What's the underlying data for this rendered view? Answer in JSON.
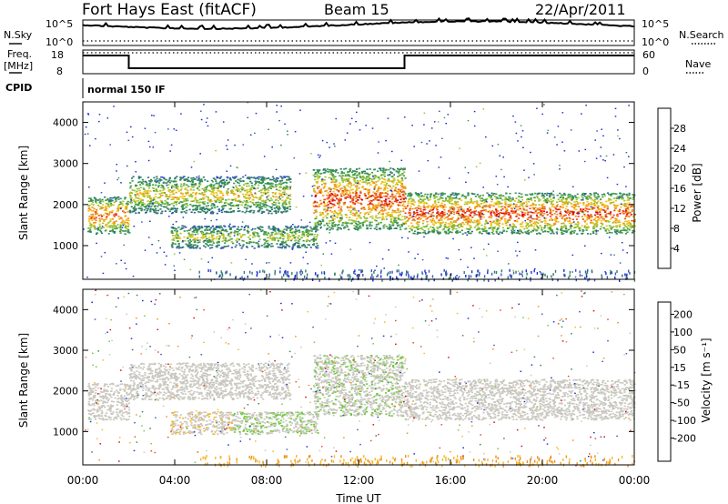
{
  "header": {
    "title": "Fort Hays East (fitACF)",
    "beam": "Beam 15",
    "date": "22/Apr/2011"
  },
  "status_panel": {
    "nsky_label": "N.Sky",
    "nsky_ticks": [
      "10^5",
      "10^0"
    ],
    "nsearch_label": "N.Search",
    "freq_label": "Freq.",
    "freq_unit": "[MHz]",
    "freq_ticks": [
      "18",
      "8"
    ],
    "nave_label": "Nave",
    "nave_ticks": [
      "60",
      "0"
    ],
    "cpid_label": "CPID",
    "cpid_value": "normal 150 IF"
  },
  "xaxis": {
    "label": "Time UT",
    "ticks": [
      "00:00",
      "04:00",
      "08:00",
      "12:00",
      "16:00",
      "20:00",
      "00:00"
    ]
  },
  "colors": {
    "frame": "#000000",
    "power_scale": [
      "#1a2bd6",
      "#3a5ab8",
      "#2f7c6a",
      "#3f9a4e",
      "#9ac235",
      "#f2c21a",
      "#f0901c",
      "#ea4a1d",
      "#dd0a12"
    ],
    "velocity_scale": [
      "#dd0a12",
      "#ea4a1d",
      "#f0901c",
      "#f6b72c",
      "#c9c7bf",
      "#c9c7bf",
      "#72c840",
      "#2f8c4c",
      "#3f59b4",
      "#1a2bd6"
    ]
  },
  "chart_data": [
    {
      "type": "heatmap",
      "name": "power-panel",
      "ylabel": "Slant Range [km]",
      "yticks": [
        "4000",
        "3000",
        "2000",
        "1000"
      ],
      "ylim": [
        180,
        4500
      ],
      "xlim_hours": [
        0,
        24
      ],
      "colorbar": {
        "label": "Power [dB]",
        "ticks": [
          "28",
          "24",
          "20",
          "16",
          "12",
          "8",
          "4"
        ],
        "range": [
          0,
          32
        ]
      },
      "echo_bands": [
        {
          "t": [
            0.2,
            2.0
          ],
          "range_km": [
            1300,
            2200
          ],
          "peak_db": 26
        },
        {
          "t": [
            2.0,
            9.0
          ],
          "range_km": [
            1800,
            2700
          ],
          "peak_db": 20
        },
        {
          "t": [
            3.8,
            10.2
          ],
          "range_km": [
            950,
            1500
          ],
          "peak_db": 18
        },
        {
          "t": [
            10.0,
            14.0
          ],
          "range_km": [
            1400,
            2900
          ],
          "peak_db": 28
        },
        {
          "t": [
            14.0,
            24.0
          ],
          "range_km": [
            1300,
            2300
          ],
          "peak_db": 28
        }
      ]
    },
    {
      "type": "heatmap",
      "name": "velocity-panel",
      "ylabel": "Slant Range [km]",
      "yticks": [
        "4000",
        "3000",
        "2000",
        "1000"
      ],
      "ylim": [
        180,
        4500
      ],
      "xlim_hours": [
        0,
        24
      ],
      "colorbar": {
        "label": "Velocity [m s⁻¹]",
        "ticks": [
          "200",
          "100",
          "50",
          "15",
          "-15",
          "-50",
          "-100",
          "-200"
        ],
        "range": [
          -250,
          250
        ]
      },
      "echo_bands": [
        {
          "t": [
            0.2,
            2.0
          ],
          "range_km": [
            1300,
            2200
          ],
          "velocity": 0
        },
        {
          "t": [
            2.0,
            9.0
          ],
          "range_km": [
            1800,
            2700
          ],
          "velocity": 0
        },
        {
          "t": [
            3.8,
            6.5
          ],
          "range_km": [
            950,
            1500
          ],
          "velocity": -40
        },
        {
          "t": [
            6.5,
            10.2
          ],
          "range_km": [
            950,
            1500
          ],
          "velocity": 45
        },
        {
          "t": [
            10.0,
            14.0
          ],
          "range_km": [
            1400,
            2900
          ],
          "velocity": 40
        },
        {
          "t": [
            14.0,
            24.0
          ],
          "range_km": [
            1300,
            2300
          ],
          "velocity": 0
        }
      ]
    }
  ]
}
